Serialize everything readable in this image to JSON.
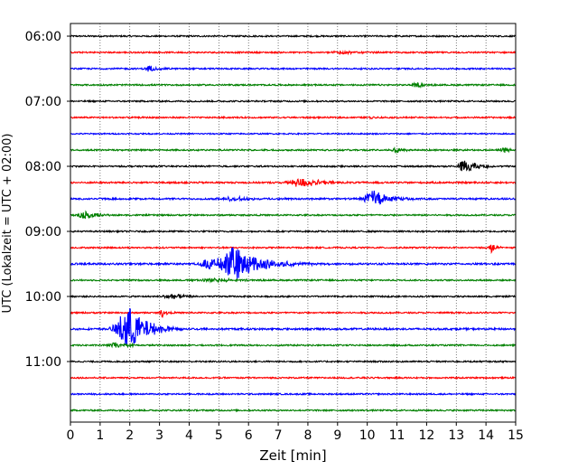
{
  "chart_data": {
    "type": "line",
    "title": "",
    "xlabel": "Zeit  [min]",
    "ylabel": "UTC (Lokalzeit = UTC + 02:00)",
    "xlim": [
      0,
      15
    ],
    "x_ticks": [
      "0",
      "1",
      "2",
      "3",
      "4",
      "5",
      "6",
      "7",
      "8",
      "9",
      "10",
      "11",
      "12",
      "13",
      "14",
      "15"
    ],
    "y_tick_labels": [
      "06:00",
      "07:00",
      "08:00",
      "09:00",
      "10:00",
      "11:00"
    ],
    "grid": "vertical dotted",
    "trace_interval_minutes": 15,
    "trace_colors": [
      "#000000",
      "#ff0000",
      "#0000ff",
      "#008000"
    ],
    "series": [
      {
        "time": "06:00",
        "noise": 0.8,
        "events": []
      },
      {
        "time": "06:15",
        "noise": 0.8,
        "events": [
          {
            "x": 9.1,
            "amp": 2.0,
            "dur": 1.0
          }
        ]
      },
      {
        "time": "06:30",
        "noise": 0.8,
        "events": [
          {
            "x": 2.7,
            "amp": 3.5,
            "dur": 0.6
          }
        ]
      },
      {
        "time": "06:45",
        "noise": 0.8,
        "events": [
          {
            "x": 11.7,
            "amp": 2.5,
            "dur": 0.6
          }
        ]
      },
      {
        "time": "07:00",
        "noise": 0.8,
        "events": []
      },
      {
        "time": "07:15",
        "noise": 0.8,
        "events": [
          {
            "x": 10.2,
            "amp": 1.2,
            "dur": 0.5
          }
        ]
      },
      {
        "time": "07:30",
        "noise": 0.7,
        "events": []
      },
      {
        "time": "07:45",
        "noise": 0.8,
        "events": [
          {
            "x": 11.0,
            "amp": 2.5,
            "dur": 0.8
          },
          {
            "x": 14.6,
            "amp": 3.5,
            "dur": 0.4
          }
        ]
      },
      {
        "time": "08:00",
        "noise": 0.8,
        "events": [
          {
            "x": 13.3,
            "amp": 7.0,
            "dur": 0.9
          }
        ]
      },
      {
        "time": "08:15",
        "noise": 0.9,
        "events": [
          {
            "x": 7.8,
            "amp": 5.5,
            "dur": 1.3
          }
        ]
      },
      {
        "time": "08:30",
        "noise": 0.9,
        "events": [
          {
            "x": 10.2,
            "amp": 10.0,
            "dur": 1.0
          },
          {
            "x": 5.5,
            "amp": 2.0,
            "dur": 2.0
          }
        ]
      },
      {
        "time": "08:45",
        "noise": 0.8,
        "events": [
          {
            "x": 0.5,
            "amp": 4.0,
            "dur": 0.9
          }
        ]
      },
      {
        "time": "09:00",
        "noise": 0.8,
        "events": []
      },
      {
        "time": "09:15",
        "noise": 0.8,
        "events": [
          {
            "x": 14.2,
            "amp": 5.0,
            "dur": 0.4
          }
        ]
      },
      {
        "time": "09:30",
        "noise": 1.0,
        "events": [
          {
            "x": 4.7,
            "amp": 6.0,
            "dur": 1.0
          },
          {
            "x": 5.6,
            "amp": 18.0,
            "dur": 1.8
          }
        ]
      },
      {
        "time": "09:45",
        "noise": 0.8,
        "events": [
          {
            "x": 4.8,
            "amp": 2.0,
            "dur": 1.8
          }
        ]
      },
      {
        "time": "10:00",
        "noise": 0.8,
        "events": [
          {
            "x": 3.4,
            "amp": 3.0,
            "dur": 0.9
          }
        ]
      },
      {
        "time": "10:15",
        "noise": 0.8,
        "events": [
          {
            "x": 3.1,
            "amp": 4.5,
            "dur": 0.3
          }
        ]
      },
      {
        "time": "10:30",
        "noise": 1.0,
        "events": [
          {
            "x": 1.95,
            "amp": 26.0,
            "dur": 1.3
          }
        ]
      },
      {
        "time": "10:45",
        "noise": 0.8,
        "events": [
          {
            "x": 1.5,
            "amp": 2.5,
            "dur": 1.0
          }
        ]
      },
      {
        "time": "11:00",
        "noise": 0.8,
        "events": []
      },
      {
        "time": "11:15",
        "noise": 0.8,
        "events": []
      },
      {
        "time": "11:30",
        "noise": 0.8,
        "events": []
      },
      {
        "time": "11:45",
        "noise": 0.8,
        "events": []
      }
    ]
  }
}
